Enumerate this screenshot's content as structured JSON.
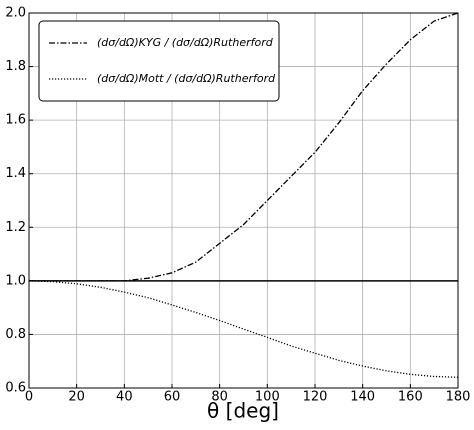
{
  "chart_data": {
    "type": "line",
    "x_label": "θ [deg]",
    "x": [
      0,
      10,
      20,
      30,
      40,
      50,
      60,
      70,
      80,
      90,
      100,
      110,
      120,
      130,
      140,
      150,
      160,
      170,
      180
    ],
    "series": [
      {
        "name": "(dσ/dΩ)KYG / (dσ/dΩ)Rutherford",
        "color": "#000000",
        "dash": "dashdot",
        "values": [
          1.0,
          1.0,
          1.0,
          1.0,
          1.0,
          1.01,
          1.03,
          1.07,
          1.14,
          1.21,
          1.3,
          1.39,
          1.48,
          1.59,
          1.71,
          1.81,
          1.9,
          1.97,
          2.0
        ]
      },
      {
        "name": "(dσ/dΩ)Mott / (dσ/dΩ)Rutherford",
        "color": "#000000",
        "dash": "dotted",
        "values": [
          1.0,
          0.997,
          0.989,
          0.976,
          0.958,
          0.937,
          0.91,
          0.882,
          0.852,
          0.82,
          0.789,
          0.757,
          0.73,
          0.703,
          0.682,
          0.664,
          0.651,
          0.643,
          0.64
        ]
      }
    ],
    "hline": 1,
    "xlim": [
      0,
      180
    ],
    "xticks": [
      0,
      20,
      40,
      60,
      80,
      100,
      120,
      140,
      160,
      180
    ],
    "ylim": [
      0.6,
      2
    ],
    "yticks": [
      0.6,
      0.8,
      {
        "value": 1,
        "label": "1.0"
      },
      1.2,
      1.4,
      1.6,
      1.8,
      {
        "value": 2,
        "label": "2.0"
      }
    ],
    "grid": true,
    "legend": "upper-left"
  }
}
